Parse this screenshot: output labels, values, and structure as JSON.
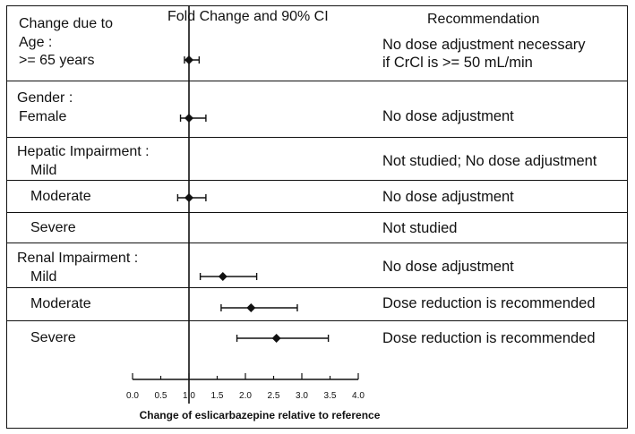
{
  "chart_data": {
    "type": "forest",
    "title": "Fold Change and 90% CI",
    "column_headers": {
      "factor": "Change due to",
      "effect": "Fold Change and 90% CI",
      "recommendation": "Recommendation"
    },
    "xlabel": "Change of eslicarbazepine relative to reference",
    "x_ticks": [
      "0.0",
      "0.5",
      "1.0",
      "1.5",
      "2.0",
      "2.5",
      "3.0",
      "3.5",
      "4.0"
    ],
    "xlim": [
      0.0,
      4.0
    ],
    "reference_line": 1.0,
    "groups": [
      {
        "name": "Age :",
        "rows": [
          {
            "label": ">= 65 years",
            "estimate": 1.0,
            "ci_low": 0.92,
            "ci_high": 1.18,
            "recommendation": "No dose adjustment necessary\nif CrCl is >= 50 mL/min"
          }
        ]
      },
      {
        "name": "Gender :",
        "rows": [
          {
            "label": "Female",
            "estimate": 1.0,
            "ci_low": 0.85,
            "ci_high": 1.3,
            "recommendation": "No dose adjustment"
          }
        ]
      },
      {
        "name": "Hepatic Impairment :",
        "rows": [
          {
            "label": "Mild",
            "estimate": null,
            "ci_low": null,
            "ci_high": null,
            "recommendation": "Not studied; No dose adjustment"
          },
          {
            "label": "Moderate",
            "estimate": 1.0,
            "ci_low": 0.8,
            "ci_high": 1.3,
            "recommendation": "No dose adjustment"
          },
          {
            "label": "Severe",
            "estimate": null,
            "ci_low": null,
            "ci_high": null,
            "recommendation": "Not studied"
          }
        ]
      },
      {
        "name": "Renal Impairment :",
        "rows": [
          {
            "label": "Mild",
            "estimate": 1.6,
            "ci_low": 1.2,
            "ci_high": 2.2,
            "recommendation": "No dose adjustment"
          },
          {
            "label": "Moderate",
            "estimate": 2.1,
            "ci_low": 1.57,
            "ci_high": 2.92,
            "recommendation": "Dose reduction is recommended"
          },
          {
            "label": "Severe",
            "estimate": 2.55,
            "ci_low": 1.85,
            "ci_high": 3.47,
            "recommendation": "Dose reduction is recommended"
          }
        ]
      }
    ]
  }
}
